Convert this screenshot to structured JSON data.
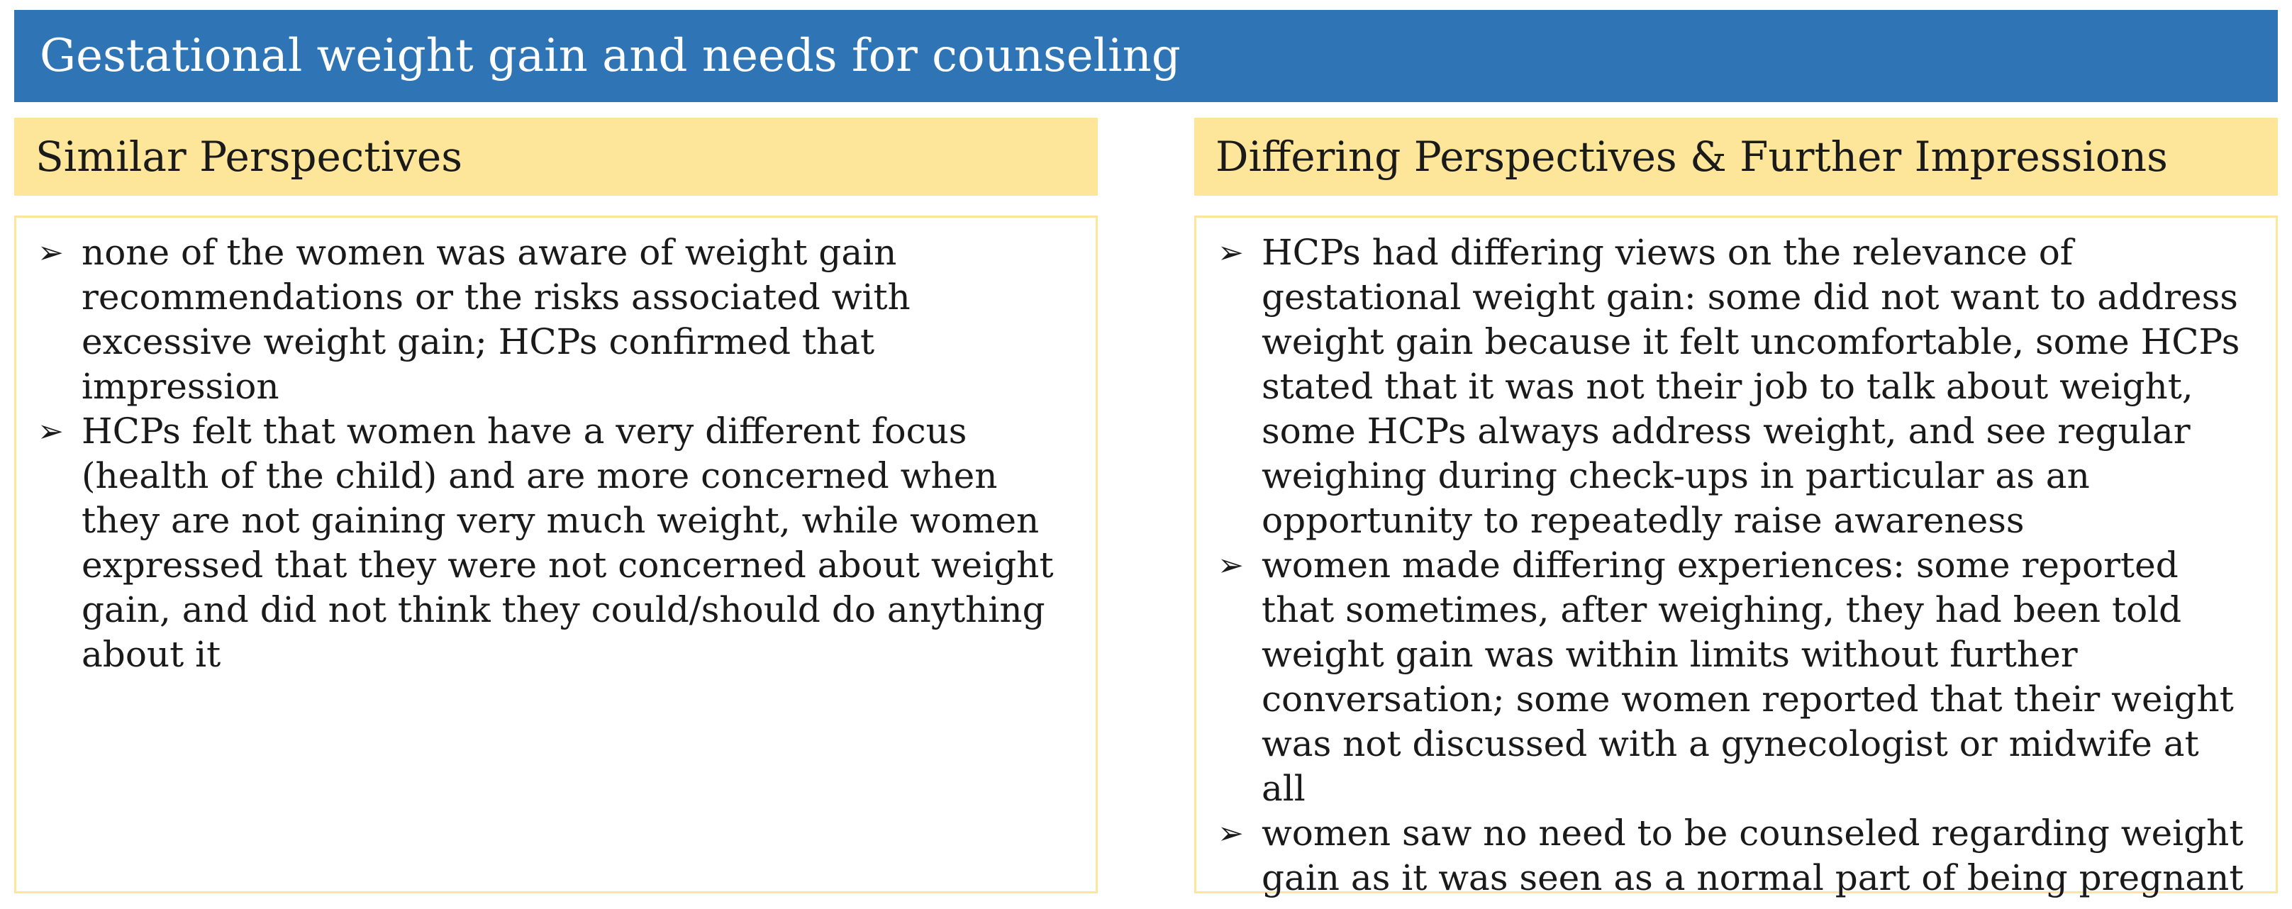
{
  "title": "Gestational weight gain and needs for counseling",
  "columns": [
    {
      "header": "Similar Perspectives",
      "bullets": [
        "none of the women was aware of weight gain recommendations or the risks associated with excessive weight gain; HCPs confirmed that impression",
        "HCPs felt that women have a very different focus (health of the child) and are more concerned when they are not gaining very much weight, while women expressed that they were not concerned about weight gain, and did not think they could/should do anything about it"
      ]
    },
    {
      "header": "Differing Perspectives & Further Impressions",
      "bullets": [
        "HCPs had differing views on the relevance of gestational weight gain: some did not want to address weight gain because it felt uncomfortable, some HCPs stated that it was not their job to talk about weight, some HCPs always address weight, and see regular weighing during check-ups in particular as an opportunity to repeatedly raise awareness",
        "women made differing experiences: some reported that sometimes, after weighing, they had been told weight gain was within limits without further conversation; some women reported that their weight was not discussed with a gynecologist or midwife at all",
        "women saw no need to be counseled regarding weight gain as it was seen as a normal part of being pregnant"
      ]
    }
  ],
  "bullet_glyph": "➢",
  "colors": {
    "title_bg": "#2f75b5",
    "header_bg": "#fde59a",
    "box_border": "#fde59a"
  }
}
